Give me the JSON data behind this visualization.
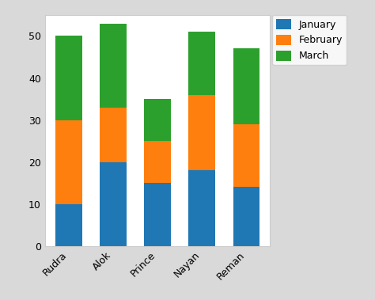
{
  "categories": [
    "Rudra",
    "Alok",
    "Prince",
    "Nayan",
    "Reman"
  ],
  "january": [
    10,
    20,
    15,
    18,
    14
  ],
  "february": [
    20,
    13,
    10,
    18,
    15
  ],
  "march": [
    20,
    20,
    10,
    15,
    18
  ],
  "colors": {
    "january": "#1f77b4",
    "february": "#ff7f0e",
    "march": "#2ca02c"
  },
  "ylim": [
    0,
    55
  ],
  "yticks": [
    0,
    10,
    20,
    30,
    40,
    50
  ],
  "legend_labels": [
    "January",
    "February",
    "March"
  ],
  "bar_width": 0.6,
  "figsize": [
    4.74,
    3.79
  ],
  "dpi": 100,
  "figure_facecolor": "#d9d9d9",
  "axes_facecolor": "#ffffff"
}
